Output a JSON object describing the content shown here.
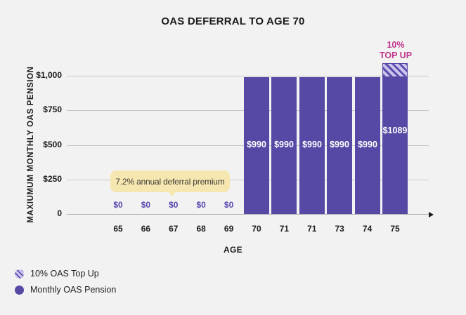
{
  "title": "OAS DEFERRAL TO AGE 70",
  "topup_callout": {
    "line1": "10%",
    "line2": "TOP UP"
  },
  "colors": {
    "bar": "#5549a5",
    "topup-bg": "#cdc5ee",
    "topup-stripe": "#5b4fae",
    "zero-label": "#5849ae",
    "callout": "#c2348b",
    "annotation-bg": "#f6e7b0",
    "annotation-text": "#3b3a33",
    "page-bg": "#f2f2f2",
    "grid": "#c7c7c7",
    "axis": "#b0b0b0",
    "text": "#1c1c1c"
  },
  "chart_data": {
    "type": "bar",
    "title": "OAS DEFERRAL TO AGE 70",
    "xlabel": "AGE",
    "ylabel": "MAXIUMUM MONTHLY OAS PENSION",
    "categories": [
      "65",
      "66",
      "67",
      "68",
      "69",
      "70",
      "71",
      "71",
      "73",
      "74",
      "75"
    ],
    "values": [
      0,
      0,
      0,
      0,
      0,
      990,
      990,
      990,
      990,
      990,
      1089
    ],
    "bar_labels": [
      "$0",
      "$0",
      "$0",
      "$0",
      "$0",
      "$990",
      "$990",
      "$990",
      "$990",
      "$990",
      "$1089"
    ],
    "topup": {
      "category": "75",
      "base": 990,
      "total": 1089,
      "label": "10% TOP UP"
    },
    "yticks": [
      {
        "label": "$1,000",
        "value": 1000
      },
      {
        "label": "$750",
        "value": 750
      },
      {
        "label": "$500",
        "value": 500
      },
      {
        "label": "$250",
        "value": 250
      },
      {
        "label": "0",
        "value": 0
      }
    ],
    "ylim": [
      0,
      1000
    ],
    "grid": true,
    "annotation": "7.2% annual deferral premium",
    "legend": [
      "10% OAS Top Up",
      "Monthly OAS Pension"
    ],
    "legend_position": "bottom-left"
  }
}
